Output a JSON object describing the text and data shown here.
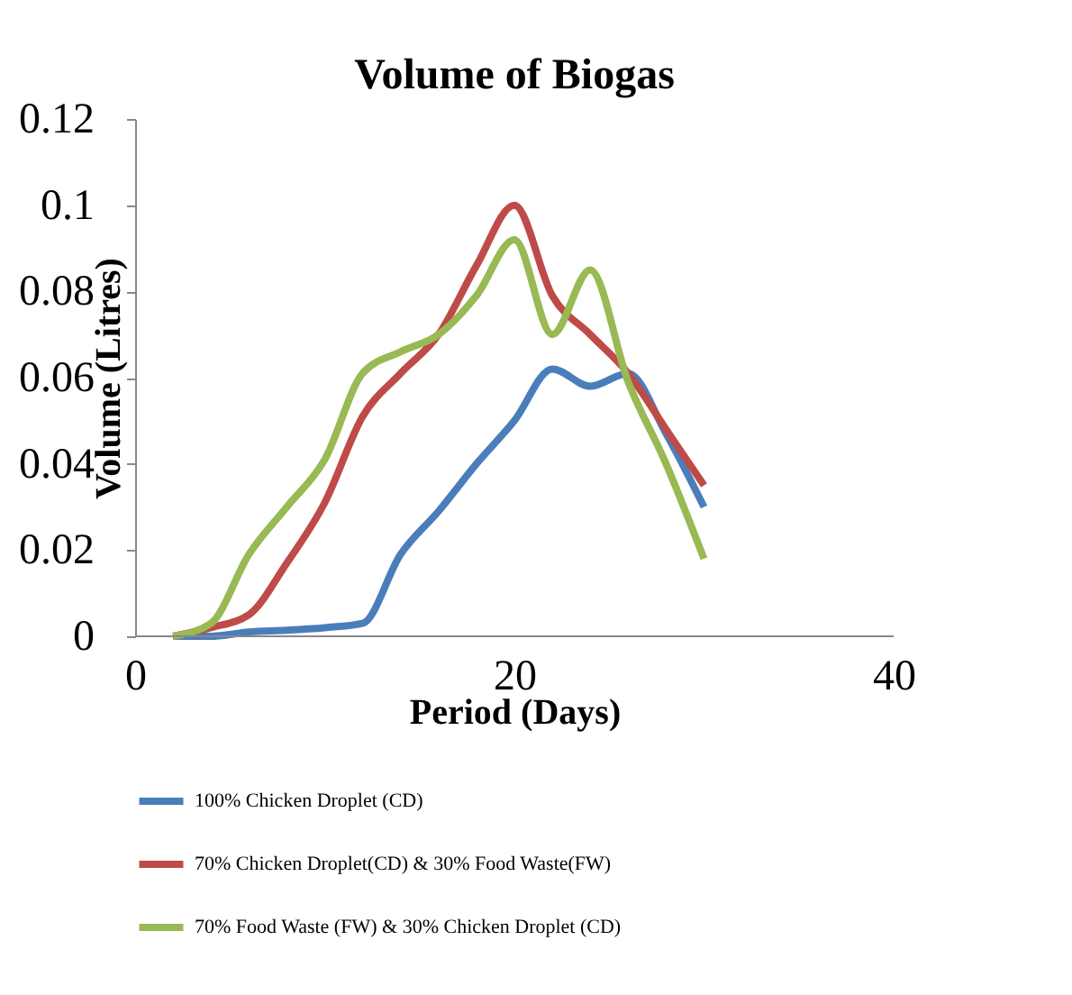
{
  "chart_data": {
    "type": "line",
    "title": "Volume of Biogas",
    "xlabel": "Period (Days)",
    "ylabel": "Volume (Litres)",
    "x": [
      2,
      4,
      6,
      8,
      10,
      12,
      14,
      16,
      18,
      20,
      22,
      24,
      26,
      28,
      30
    ],
    "xlim": [
      0,
      40
    ],
    "xticks": [
      0,
      20,
      40
    ],
    "ylim": [
      0,
      0.12
    ],
    "yticks": [
      0,
      0.02,
      0.04,
      0.06,
      0.08,
      0.1,
      0.12
    ],
    "grid": false,
    "legend": "bottom",
    "marker": "none",
    "line_style": "solid",
    "series": [
      {
        "name": "100% Chicken Droplet (CD)",
        "color": "#4a7ebb",
        "values": [
          0,
          0,
          0.001,
          0.0014,
          0.002,
          0.003,
          0.019,
          0.029,
          0.04,
          0.05,
          0.062,
          0.058,
          0.061,
          0.047,
          0.03
        ]
      },
      {
        "name": "70% Chicken Droplet(CD) & 30% Food Waste(FW)",
        "color": "#be4b48",
        "values": [
          0,
          0.002,
          0.005,
          0.017,
          0.031,
          0.051,
          0.061,
          0.07,
          0.086,
          0.1,
          0.079,
          0.07,
          0.061,
          0.048,
          0.035
        ]
      },
      {
        "name": "70% Food Waste (FW) & 30% Chicken Droplet (CD)",
        "color": "#98b954",
        "values": [
          0,
          0.003,
          0.019,
          0.03,
          0.041,
          0.061,
          0.066,
          0.07,
          0.079,
          0.092,
          0.07,
          0.085,
          0.059,
          0.04,
          0.018
        ]
      }
    ]
  }
}
